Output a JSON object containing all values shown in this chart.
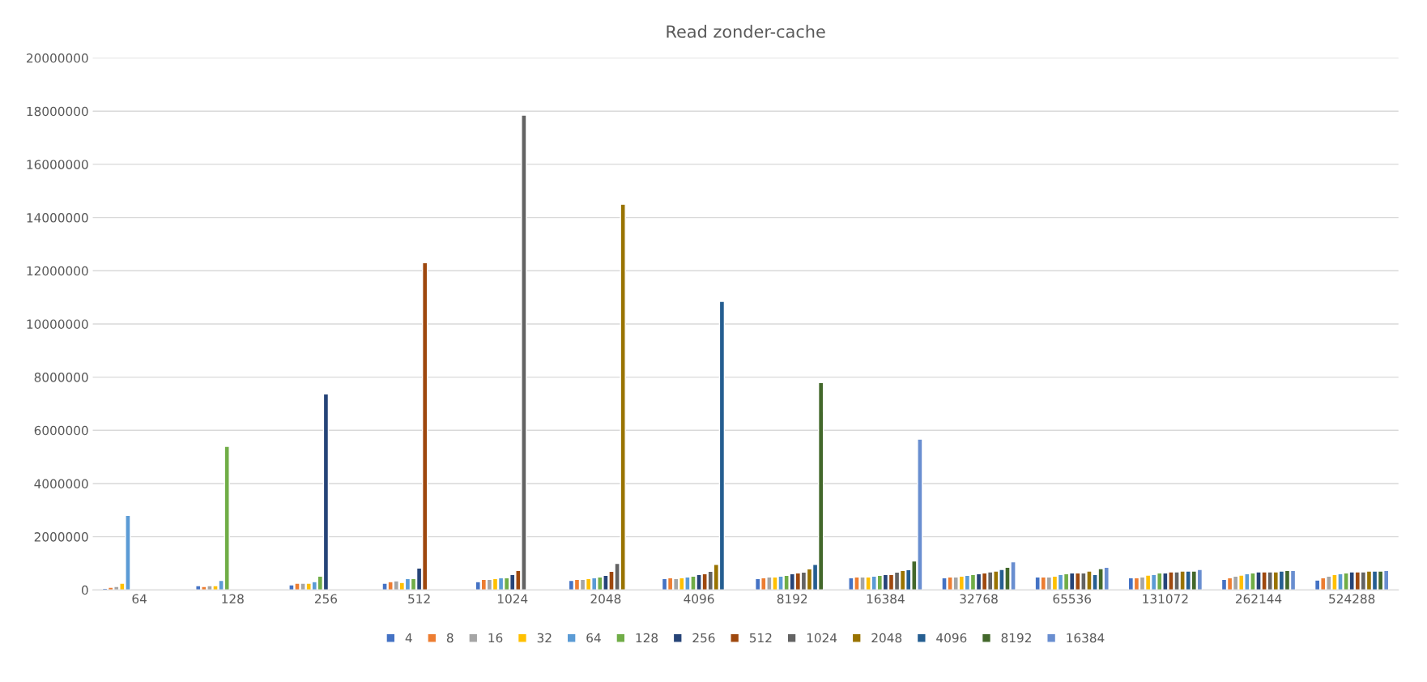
{
  "chart_data": {
    "type": "bar",
    "title": "Read zonder-cache",
    "categories": [
      "64",
      "128",
      "256",
      "512",
      "1024",
      "2048",
      "4096",
      "8192",
      "16384",
      "32768",
      "65536",
      "131072",
      "262144",
      "524288"
    ],
    "series": [
      {
        "name": "4",
        "color": "#4472c4",
        "values": [
          60000,
          160000,
          190000,
          250000,
          310000,
          360000,
          430000,
          430000,
          460000,
          460000,
          490000,
          460000,
          400000,
          370000
        ]
      },
      {
        "name": "8",
        "color": "#ed7d31",
        "values": [
          100000,
          130000,
          250000,
          310000,
          400000,
          400000,
          460000,
          460000,
          490000,
          490000,
          490000,
          460000,
          460000,
          460000
        ]
      },
      {
        "name": "16",
        "color": "#a5a5a5",
        "values": [
          130000,
          160000,
          250000,
          340000,
          400000,
          400000,
          430000,
          490000,
          490000,
          490000,
          490000,
          490000,
          520000,
          520000
        ]
      },
      {
        "name": "32",
        "color": "#ffc000",
        "values": [
          250000,
          160000,
          250000,
          280000,
          430000,
          430000,
          460000,
          490000,
          490000,
          520000,
          520000,
          560000,
          560000,
          580000
        ]
      },
      {
        "name": "64",
        "color": "#5b9bd5",
        "values": [
          2800000,
          360000,
          310000,
          430000,
          460000,
          460000,
          490000,
          520000,
          520000,
          550000,
          580000,
          580000,
          610000,
          610000
        ]
      },
      {
        "name": "128",
        "color": "#70ad47",
        "values": [
          null,
          5400000,
          520000,
          430000,
          460000,
          490000,
          520000,
          550000,
          550000,
          580000,
          610000,
          640000,
          640000,
          640000
        ]
      },
      {
        "name": "256",
        "color": "#264478",
        "values": [
          null,
          null,
          7370000,
          820000,
          580000,
          550000,
          580000,
          610000,
          580000,
          610000,
          640000,
          640000,
          680000,
          680000
        ]
      },
      {
        "name": "512",
        "color": "#9e480e",
        "values": [
          null,
          null,
          null,
          12300000,
          730000,
          700000,
          610000,
          640000,
          580000,
          640000,
          640000,
          680000,
          680000,
          680000
        ]
      },
      {
        "name": "1024",
        "color": "#636363",
        "values": [
          null,
          null,
          null,
          null,
          17850000,
          1000000,
          700000,
          670000,
          670000,
          680000,
          640000,
          680000,
          680000,
          680000
        ]
      },
      {
        "name": "2048",
        "color": "#997300",
        "values": [
          null,
          null,
          null,
          null,
          null,
          14500000,
          960000,
          790000,
          730000,
          710000,
          710000,
          710000,
          680000,
          710000
        ]
      },
      {
        "name": "4096",
        "color": "#255e91",
        "values": [
          null,
          null,
          null,
          null,
          null,
          null,
          10850000,
          960000,
          760000,
          770000,
          580000,
          710000,
          710000,
          710000
        ]
      },
      {
        "name": "8192",
        "color": "#43682b",
        "values": [
          null,
          null,
          null,
          null,
          null,
          null,
          null,
          7800000,
          1090000,
          850000,
          800000,
          710000,
          730000,
          710000
        ]
      },
      {
        "name": "16384",
        "color": "#698ed0",
        "values": [
          null,
          null,
          null,
          null,
          null,
          null,
          null,
          null,
          5670000,
          1060000,
          850000,
          770000,
          730000,
          730000
        ]
      }
    ],
    "ylim": [
      0,
      20000000
    ],
    "yticks": [
      0,
      2000000,
      4000000,
      6000000,
      8000000,
      10000000,
      12000000,
      14000000,
      16000000,
      18000000,
      20000000
    ],
    "grid": "y",
    "legend": "bottom"
  }
}
